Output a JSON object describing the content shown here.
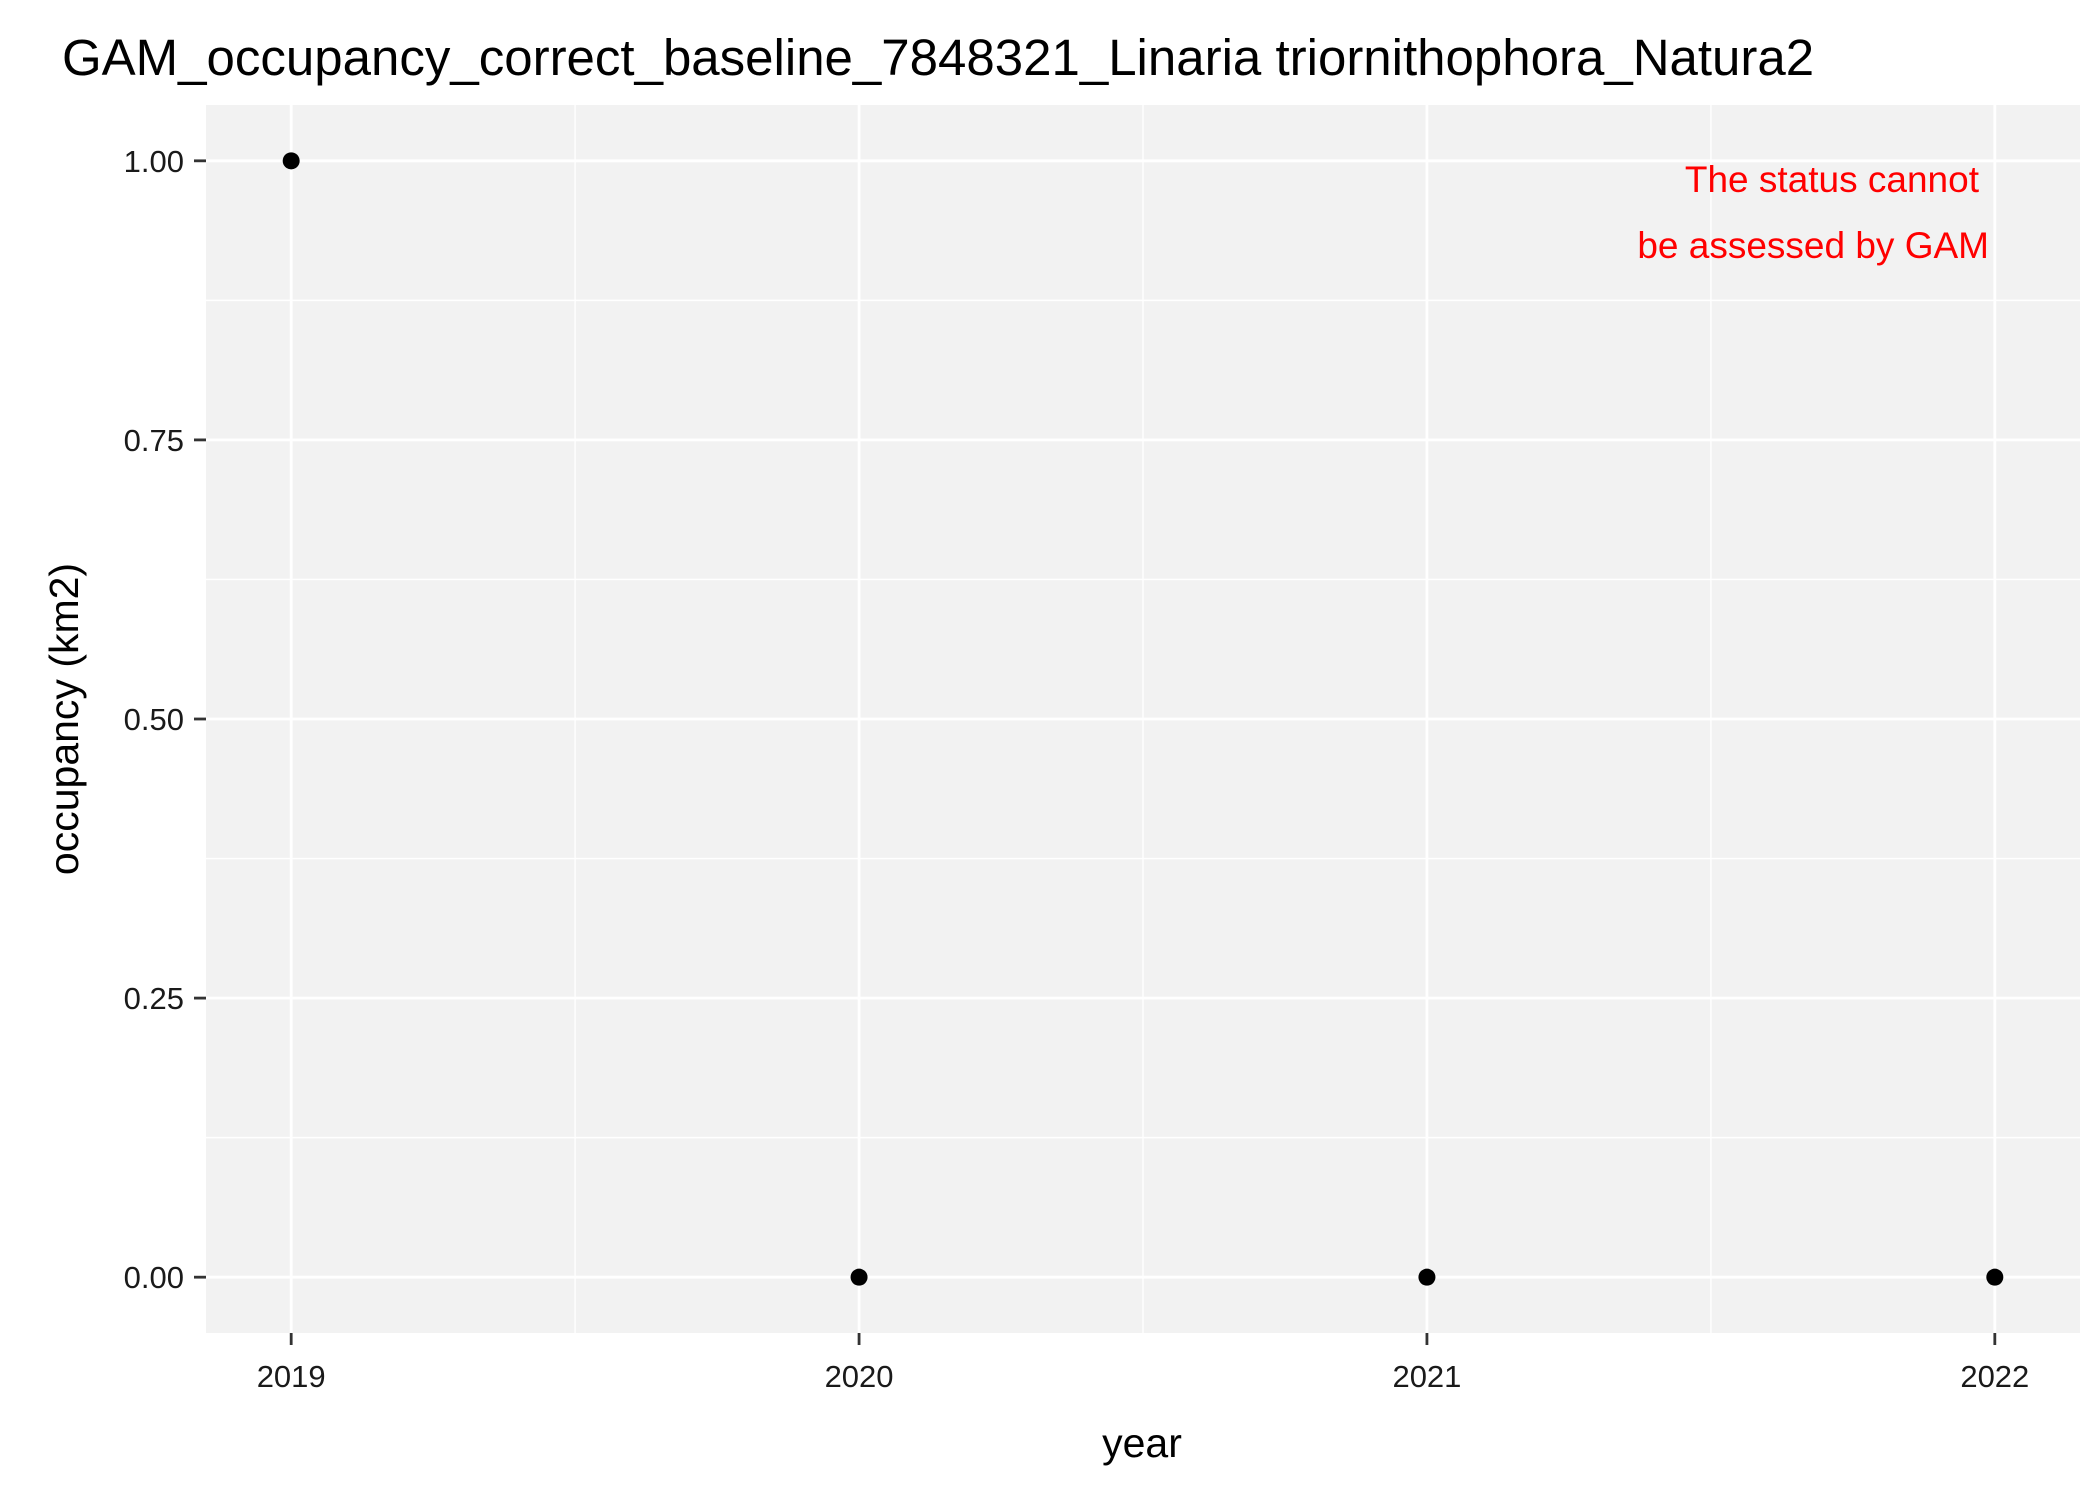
{
  "chart_data": {
    "type": "scatter",
    "title": "GAM_occupancy_correct_baseline_7848321_Linaria triornithophora_Natura2",
    "xlabel": "year",
    "ylabel": "occupancy (km2)",
    "x": [
      2019,
      2020,
      2021,
      2022
    ],
    "series": [
      {
        "values": [
          1,
          0,
          0,
          0
        ]
      }
    ],
    "xlim": [
      2018.85,
      2022.15
    ],
    "ylim": [
      -0.05,
      1.05
    ],
    "x_ticks": [
      2019,
      2020,
      2021,
      2022
    ],
    "x_tick_labels": [
      "2019",
      "2020",
      "2021",
      "2022"
    ],
    "y_ticks": [
      0,
      0.25,
      0.5,
      0.75,
      1
    ],
    "y_tick_labels": [
      "0.00",
      "0.25",
      "0.50",
      "0.75",
      "1.00"
    ],
    "grid": true,
    "annotation": {
      "lines": [
        "The status cannot",
        "be assessed by GAM"
      ],
      "color": "#ff0000",
      "position": "top-right"
    },
    "colors": {
      "panel_background": "#f2f2f2",
      "grid_major": "#ffffff",
      "grid_minor": "#ffffff",
      "point": "#000000"
    }
  }
}
